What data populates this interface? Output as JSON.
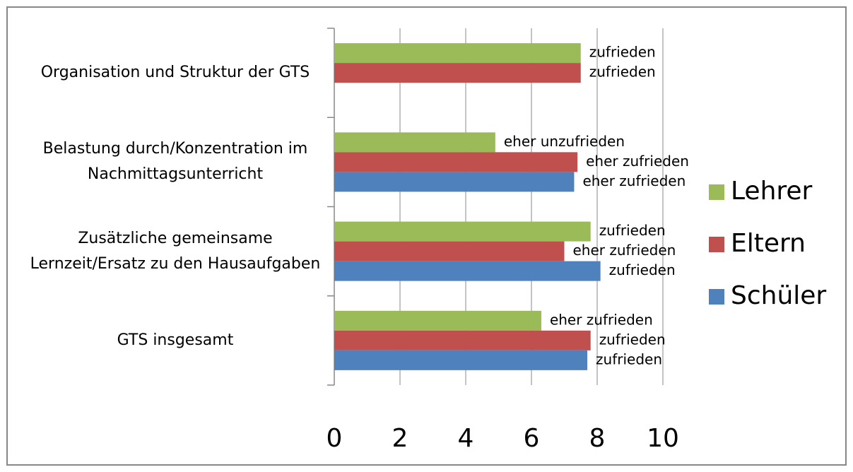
{
  "chart_data": {
    "type": "bar",
    "orientation": "horizontal",
    "categories": [
      "Organisation und Struktur der GTS",
      "Belastung durch/Konzentration im Nachmittagsunterricht",
      "Zusätzliche gemeinsame Lernzeit/Ersatz zu den Hausaufgaben",
      "GTS insgesamt"
    ],
    "series": [
      {
        "name": "Lehrer",
        "color": "#9bbb59",
        "values": [
          7.5,
          4.9,
          7.8,
          6.3
        ],
        "value_labels": [
          "zufrieden",
          "eher unzufrieden",
          "zufrieden",
          "eher zufrieden"
        ]
      },
      {
        "name": "Eltern",
        "color": "#c0504d",
        "values": [
          7.5,
          7.4,
          7.0,
          7.8
        ],
        "value_labels": [
          "zufrieden",
          "eher zufrieden",
          "eher zufrieden",
          "zufrieden"
        ]
      },
      {
        "name": "Schüler",
        "color": "#4f81bd",
        "values": [
          null,
          7.3,
          8.1,
          7.7
        ],
        "value_labels": [
          null,
          "eher zufrieden",
          "zufrieden",
          "zufrieden"
        ]
      }
    ],
    "xlim": [
      0,
      10
    ],
    "xticks": [
      0,
      2,
      4,
      6,
      8,
      10
    ],
    "grid": true,
    "legend": "right"
  }
}
